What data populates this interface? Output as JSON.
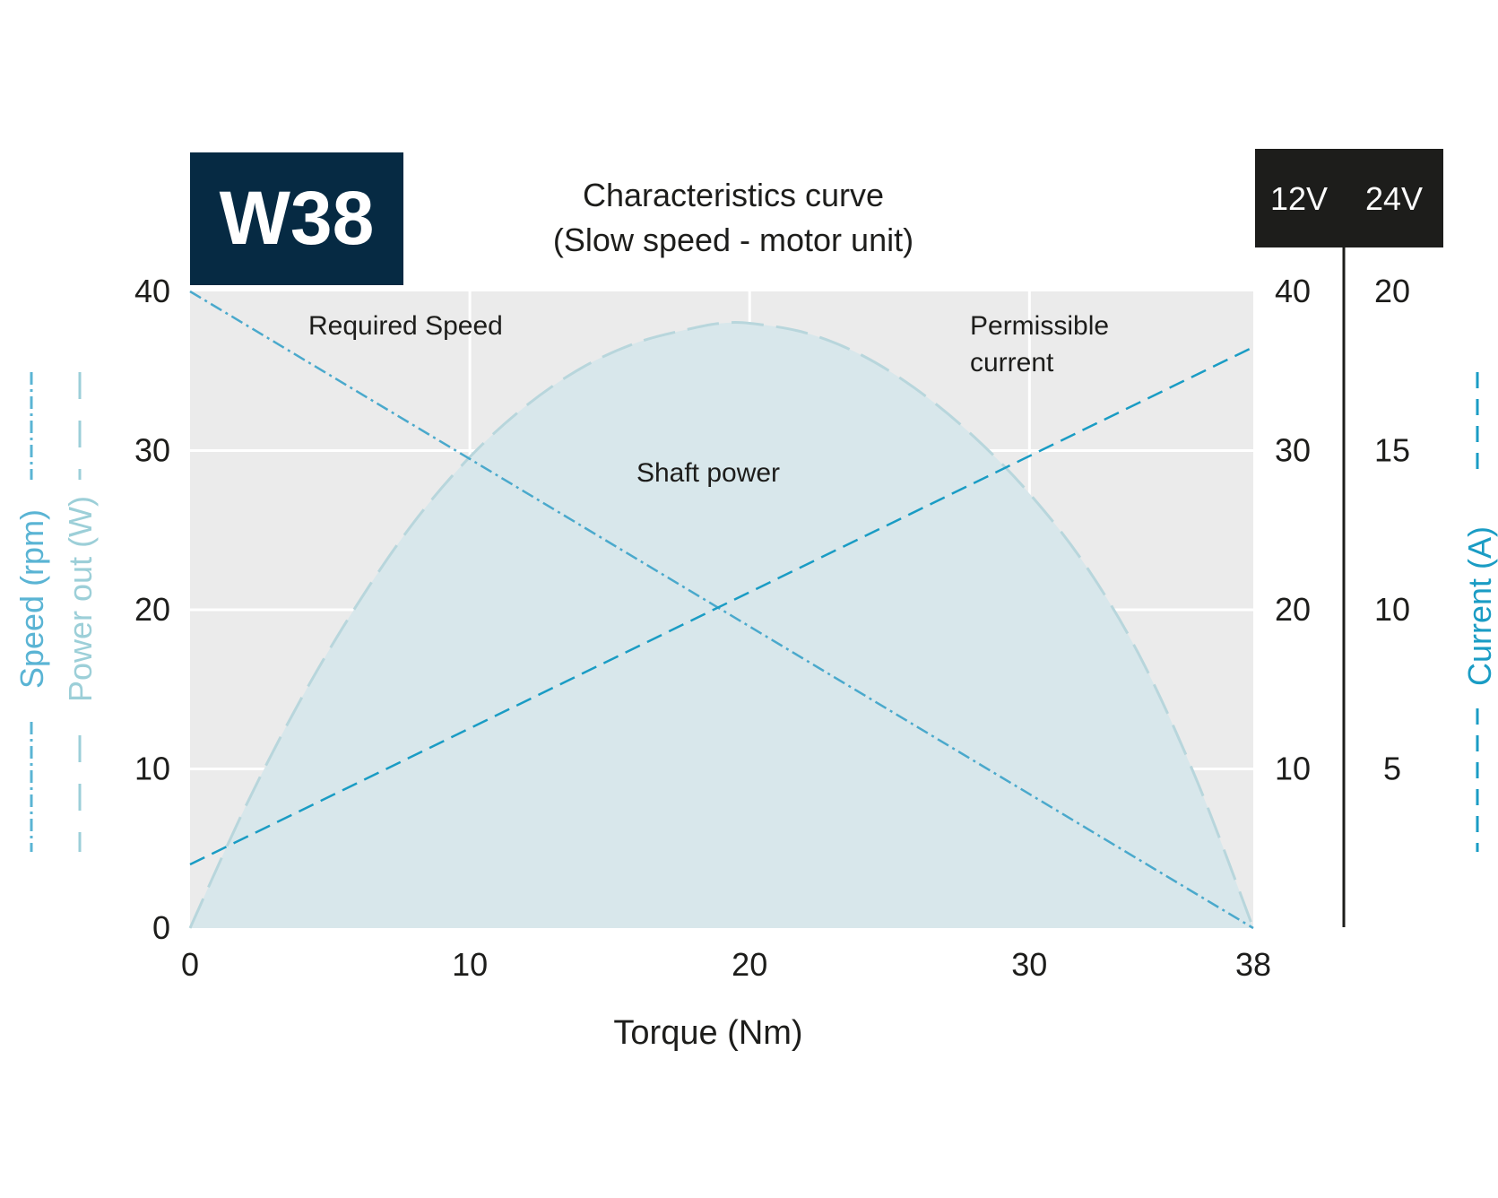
{
  "badge": {
    "label": "W38",
    "bg_color": "#062a43",
    "text_color": "#ffffff"
  },
  "chart_data": {
    "type": "line",
    "title_line1": "Characteristics curve",
    "title_line2": "(Slow speed - motor unit)",
    "xlabel": "Torque (Nm)",
    "ylabel_speed": "Speed (rpm)",
    "ylabel_power": "Power out (W)",
    "ylabel_current": "Current (A)",
    "xlim": [
      0,
      38
    ],
    "ylim": [
      0,
      40
    ],
    "x_ticks": [
      0,
      10,
      20,
      30,
      38
    ],
    "left_ticks": [
      0,
      10,
      20,
      30,
      40
    ],
    "voltage_headers": [
      "12V",
      "24V"
    ],
    "right_ticks_12v": [
      10,
      20,
      30,
      40
    ],
    "right_ticks_24v": [
      5,
      10,
      15,
      20
    ],
    "grid": true,
    "colors": {
      "plot_bg": "#ebebeb",
      "grid": "#ffffff",
      "power_fill": "#d8e7eb",
      "power_line": "#b8d6dc",
      "speed_line": "#4aa9cc",
      "current_line": "#1a9cc4",
      "speed_label": "#5ab4d4",
      "power_label": "#9ccfd8",
      "current_label": "#1a9cc4",
      "header_bg": "#1d1d1b"
    },
    "series": [
      {
        "key": "speed",
        "label": "Required Speed",
        "line": "dash-dot",
        "x": [
          0,
          38
        ],
        "y": [
          40,
          0
        ]
      },
      {
        "key": "current",
        "label_line1": "Permissible",
        "label_line2": "current",
        "line": "dashed",
        "x": [
          0,
          38
        ],
        "y": [
          4,
          36.5
        ]
      },
      {
        "key": "power",
        "label": "Shaft power",
        "line": "long-dash",
        "fill": true,
        "x": [
          0,
          2,
          4,
          6,
          8,
          10,
          12,
          14,
          16,
          18,
          19,
          20,
          22,
          24,
          26,
          28,
          30,
          32,
          34,
          36,
          38
        ],
        "y": [
          0,
          7.7,
          14.5,
          20.4,
          25.5,
          29.6,
          32.8,
          35.2,
          36.8,
          37.7,
          38.0,
          38.0,
          37.4,
          36.0,
          33.8,
          30.9,
          27.3,
          22.8,
          16.9,
          9.2,
          0
        ]
      }
    ]
  }
}
